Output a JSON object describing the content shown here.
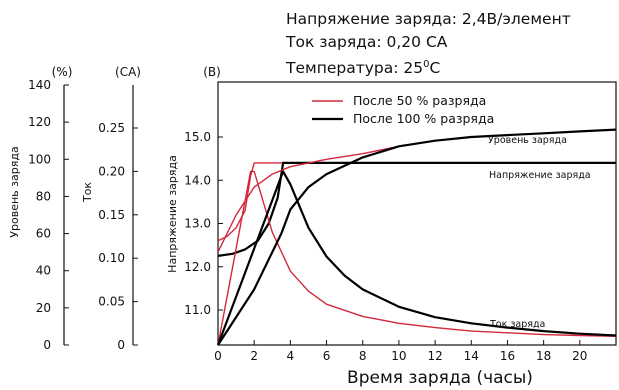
{
  "conditions": {
    "voltage_text": "Напряжение заряда: 2,4В/элемент",
    "current_text": "Ток заряда: 0,20 СА",
    "temperature_text": "Температура: 25",
    "temperature_sup": "0",
    "temperature_unit": "С"
  },
  "chart_data": {
    "type": "line",
    "title": "",
    "xlabel": "Время заряда (часы)",
    "x_ticks": [
      "0",
      "2",
      "4",
      "6",
      "8",
      "10",
      "12",
      "14",
      "16",
      "18",
      "20"
    ],
    "xlim": [
      0,
      22
    ],
    "axes": {
      "percent": {
        "unit_label": "(%)",
        "label": "Уровень заряда",
        "ticks": [
          "0",
          "20",
          "40",
          "60",
          "80",
          "100",
          "120",
          "140"
        ],
        "range": [
          0,
          140
        ]
      },
      "current": {
        "unit_label": "(СА)",
        "label": "Ток",
        "ticks": [
          "0",
          "0.05",
          "0.10",
          "0.15",
          "0.20",
          "0.25"
        ],
        "range": [
          0,
          0.25
        ]
      },
      "voltage": {
        "unit_label": "(В)",
        "label": "Напряжение заряда",
        "ticks": [
          "11.0",
          "12.0",
          "13.0",
          "14.0",
          "15.0"
        ],
        "range": [
          10.6,
          15.9
        ]
      }
    },
    "legend": [
      {
        "label": "После 50 % разряда",
        "color": "#d2283c"
      },
      {
        "label": "После 100 % разряда",
        "color": "#000000"
      }
    ],
    "annotations": {
      "charge_level": "Уровень заряда",
      "charge_voltage": "Напряжение заряда",
      "charge_current": "Ток заряда"
    },
    "series": [
      {
        "legend_ref": 0,
        "quantity": "voltage",
        "color": "#d2283c",
        "points": [
          [
            0,
            12.6
          ],
          [
            0.5,
            12.7
          ],
          [
            1,
            12.9
          ],
          [
            1.5,
            13.3
          ],
          [
            1.8,
            14.1
          ],
          [
            2,
            14.4
          ],
          [
            4,
            14.4
          ],
          [
            22,
            14.4
          ]
        ]
      },
      {
        "legend_ref": 1,
        "quantity": "voltage",
        "color": "#000000",
        "points": [
          [
            0,
            12.25
          ],
          [
            0.8,
            12.3
          ],
          [
            1.5,
            12.4
          ],
          [
            2.2,
            12.6
          ],
          [
            2.8,
            13.0
          ],
          [
            3.3,
            13.6
          ],
          [
            3.6,
            14.4
          ],
          [
            22,
            14.4
          ]
        ]
      },
      {
        "legend_ref": 0,
        "quantity": "current",
        "color": "#d2283c",
        "points": [
          [
            0,
            0.0
          ],
          [
            1.8,
            0.2
          ],
          [
            2,
            0.2
          ],
          [
            3,
            0.13
          ],
          [
            4,
            0.085
          ],
          [
            5,
            0.062
          ],
          [
            6,
            0.047
          ],
          [
            8,
            0.033
          ],
          [
            10,
            0.025
          ],
          [
            12,
            0.02
          ],
          [
            14,
            0.016
          ],
          [
            16,
            0.014
          ],
          [
            18,
            0.012
          ],
          [
            20,
            0.011
          ],
          [
            22,
            0.01
          ]
        ]
      },
      {
        "legend_ref": 1,
        "quantity": "current",
        "color": "#000000",
        "points": [
          [
            0,
            0.0
          ],
          [
            3.6,
            0.2
          ],
          [
            4,
            0.185
          ],
          [
            5,
            0.135
          ],
          [
            6,
            0.102
          ],
          [
            7,
            0.08
          ],
          [
            8,
            0.064
          ],
          [
            10,
            0.044
          ],
          [
            12,
            0.032
          ],
          [
            14,
            0.025
          ],
          [
            16,
            0.02
          ],
          [
            18,
            0.016
          ],
          [
            20,
            0.013
          ],
          [
            22,
            0.011
          ]
        ]
      },
      {
        "legend_ref": 0,
        "quantity": "percent",
        "color": "#d2283c",
        "points": [
          [
            0,
            50
          ],
          [
            1,
            70
          ],
          [
            2,
            85
          ],
          [
            3,
            92
          ],
          [
            4,
            96
          ],
          [
            6,
            100
          ],
          [
            8,
            103
          ],
          [
            10,
            107
          ],
          [
            12,
            110
          ],
          [
            14,
            112
          ],
          [
            16,
            113
          ],
          [
            18,
            114
          ],
          [
            20,
            115
          ],
          [
            22,
            116
          ]
        ]
      },
      {
        "legend_ref": 1,
        "quantity": "percent",
        "color": "#000000",
        "points": [
          [
            0,
            0
          ],
          [
            2,
            30
          ],
          [
            3.5,
            60
          ],
          [
            4,
            73
          ],
          [
            5,
            85
          ],
          [
            6,
            92
          ],
          [
            8,
            101
          ],
          [
            10,
            107
          ],
          [
            12,
            110
          ],
          [
            14,
            112
          ],
          [
            16,
            113
          ],
          [
            18,
            114
          ],
          [
            20,
            115
          ],
          [
            22,
            116
          ]
        ]
      }
    ]
  }
}
